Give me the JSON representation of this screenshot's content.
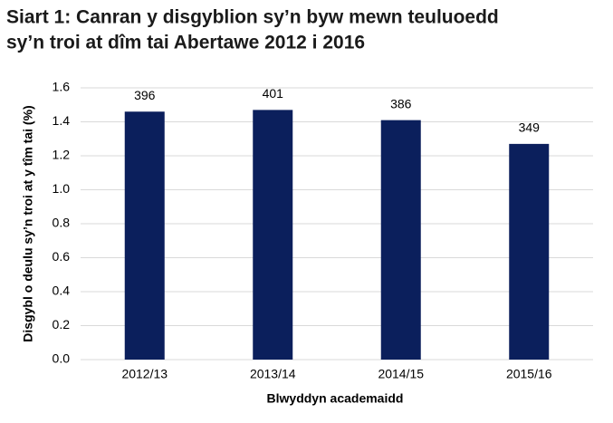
{
  "chart_data": {
    "type": "bar",
    "title": [
      "Siart 1: Canran y disgyblion sy’n byw mewn teuluoedd",
      "sy’n troi at dîm tai Abertawe 2012 i 2016"
    ],
    "x_label": "Blwyddyn academaidd",
    "y_label": "Disgybl o deulu sy’n troi at y tîm tai (%)",
    "categories": [
      "2012/13",
      "2013/14",
      "2014/15",
      "2015/16"
    ],
    "values": [
      1.46,
      1.47,
      1.41,
      1.27
    ],
    "data_labels": [
      396,
      401,
      386,
      349
    ],
    "color": "#0b1f5c",
    "ylim": [
      0,
      1.6
    ],
    "yticks": [
      {
        "value": 0,
        "label": "0.0"
      },
      {
        "value": 0.2,
        "label": "0.2"
      },
      {
        "value": 0.4,
        "label": "0.4"
      },
      {
        "value": 0.6,
        "label": "0.6"
      },
      {
        "value": 0.8,
        "label": "0.8"
      },
      {
        "value": 1.0,
        "label": "1.0"
      },
      {
        "value": 1.2,
        "label": "1.2"
      },
      {
        "value": 1.4,
        "label": "1.4"
      },
      {
        "value": 1.6,
        "label": "1.6"
      }
    ],
    "grid": true
  }
}
